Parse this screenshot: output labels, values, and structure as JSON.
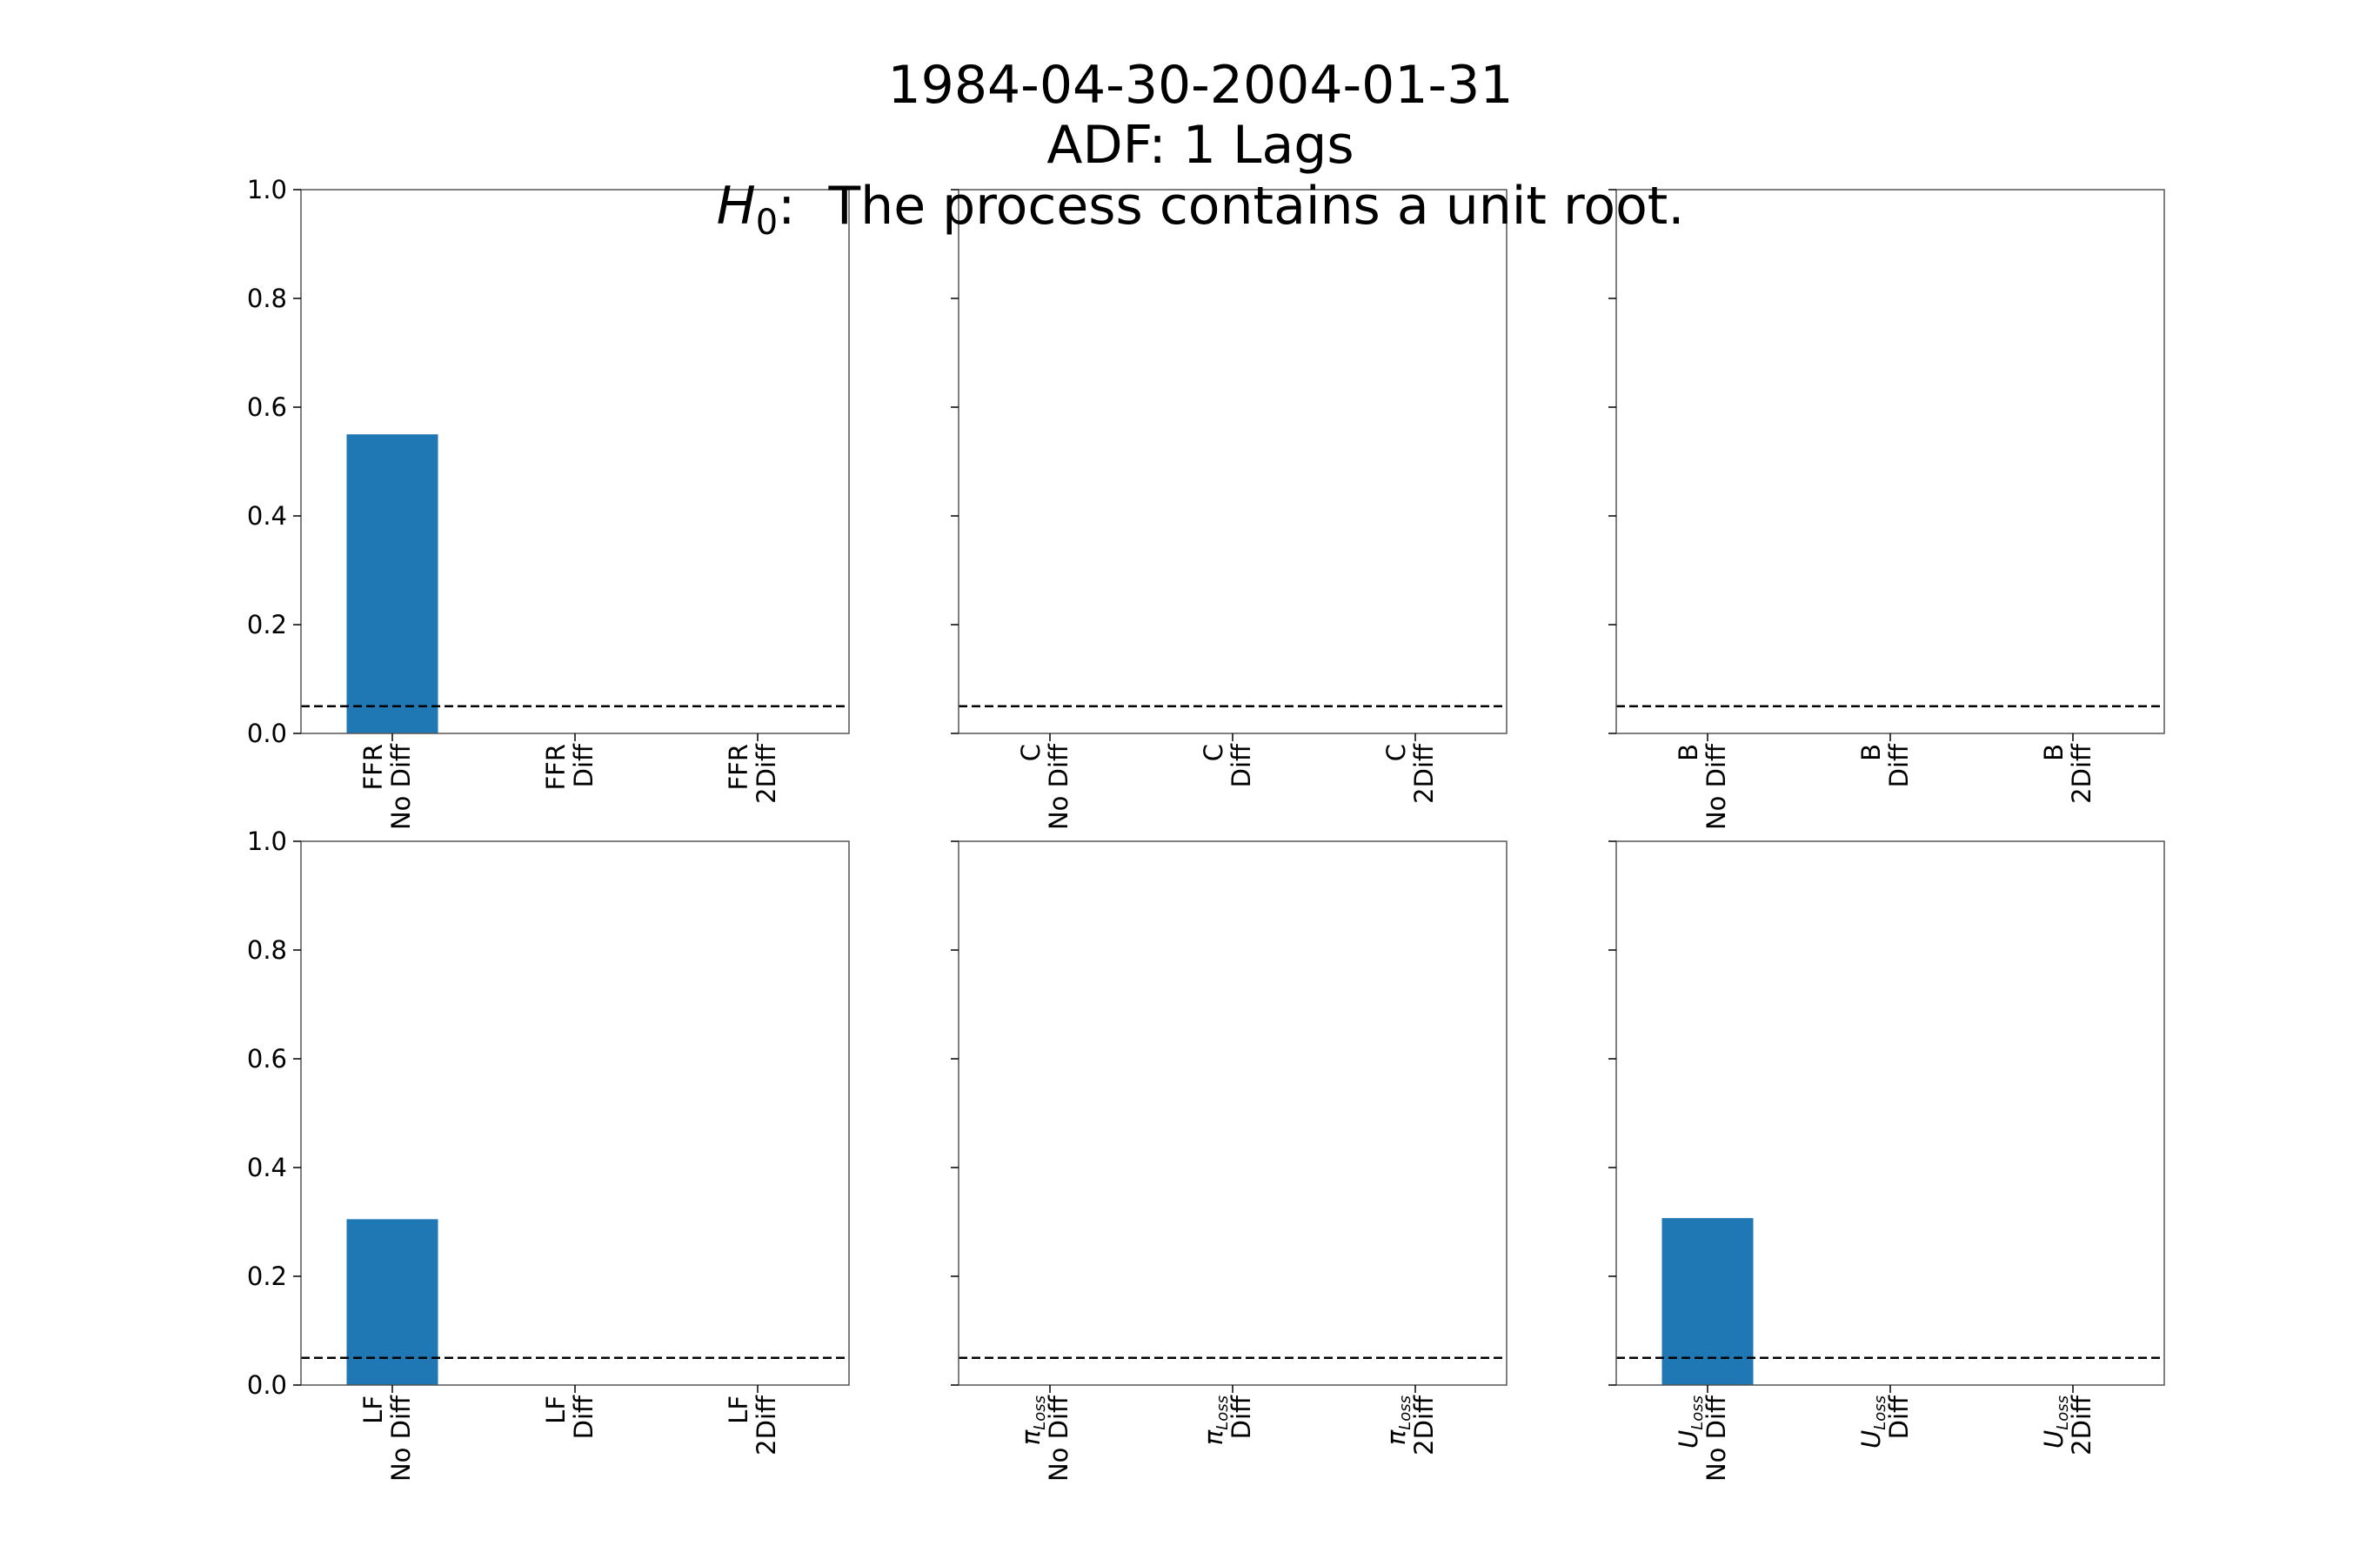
{
  "chart_data": {
    "title_lines": [
      "1984-04-30-2004-01-31",
      "ADF: 1 Lags"
    ],
    "hypothesis": {
      "symbol": "H",
      "subscript": "0",
      "text": ":  The process contains a unit root."
    },
    "type": "bar",
    "ylim": [
      0,
      1
    ],
    "yticks": [
      "0.0",
      "0.2",
      "0.4",
      "0.6",
      "0.8",
      "1.0"
    ],
    "threshold": 0.05,
    "bar_color": "#1f77b4",
    "panels": [
      {
        "variable": "FFR",
        "categories": [
          "No Diff",
          "Diff",
          "2Diff"
        ],
        "values": [
          0.55,
          0,
          0
        ]
      },
      {
        "variable": "C",
        "categories": [
          "No Diff",
          "Diff",
          "2Diff"
        ],
        "values": [
          0,
          0,
          0
        ]
      },
      {
        "variable": "B",
        "categories": [
          "No Diff",
          "Diff",
          "2Diff"
        ],
        "values": [
          0,
          0,
          0
        ]
      },
      {
        "variable": "LF",
        "categories": [
          "No Diff",
          "Diff",
          "2Diff"
        ],
        "values": [
          0.305,
          0,
          0
        ]
      },
      {
        "variable": "π",
        "subscript": "Loss",
        "categories": [
          "No Diff",
          "Diff",
          "2Diff"
        ],
        "values": [
          0,
          0,
          0
        ]
      },
      {
        "variable": "U",
        "subscript": "Loss",
        "categories": [
          "No Diff",
          "Diff",
          "2Diff"
        ],
        "values": [
          0.307,
          0,
          0
        ]
      }
    ]
  }
}
